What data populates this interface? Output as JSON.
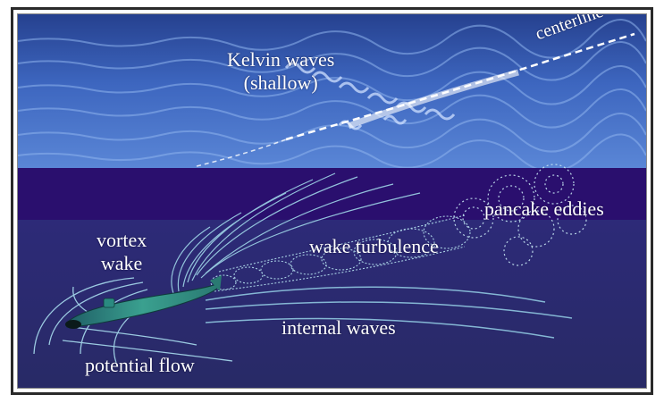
{
  "figure": {
    "labels": {
      "kelvin_line1": "Kelvin waves",
      "kelvin_line2": "(shallow)",
      "centerline": "centerline",
      "pancake_eddies": "pancake eddies",
      "vortex_line1": "vortex",
      "vortex_line2": "wake",
      "wake_turbulence": "wake turbulence",
      "internal_waves": "internal waves",
      "potential_flow": "potential flow"
    },
    "colors": {
      "surface_top": "#2f4fa8",
      "surface_mid": "#3f6cc4",
      "thermocline_band": "#2a0f6e",
      "deep_water": "#2b2c6e",
      "flow_lines": "#9fd6e8",
      "submarine": "#2f8a80"
    },
    "icons": {
      "submarine": "submarine-icon"
    }
  }
}
